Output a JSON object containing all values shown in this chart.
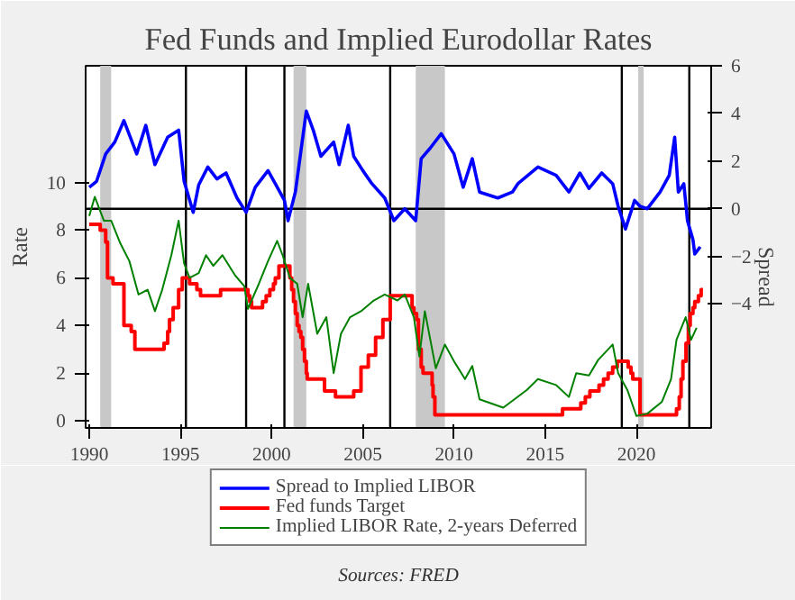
{
  "chart_data": {
    "type": "line",
    "title": "Fed Funds and Implied Eurodollar Rates",
    "ylabel": "Rate",
    "y2label": "Spread",
    "xlim": [
      1989.8,
      2024.1
    ],
    "xticks": [
      1990,
      1995,
      2000,
      2005,
      2010,
      2015,
      2020
    ],
    "ylim": [
      -0.3,
      14.9
    ],
    "yticks": [
      0,
      2,
      4,
      6,
      8,
      10
    ],
    "y2lim": [
      -9.2,
      6
    ],
    "y2ticks": [
      -4,
      -2,
      0,
      2,
      4,
      6
    ],
    "legend": "bottom",
    "grid": false,
    "annotations": [
      "Sources: FRED"
    ],
    "ref_lines": [
      {
        "axis": "y2",
        "value": 0,
        "color": "#000000"
      },
      {
        "axis": "x",
        "value": 1995.3,
        "color": "#000000"
      },
      {
        "axis": "x",
        "value": 1998.6,
        "color": "#000000"
      },
      {
        "axis": "x",
        "value": 2000.7,
        "color": "#000000"
      },
      {
        "axis": "x",
        "value": 2006.5,
        "color": "#000000"
      },
      {
        "axis": "x",
        "value": 2019.2,
        "color": "#000000"
      },
      {
        "axis": "x",
        "value": 2022.9,
        "color": "#000000"
      }
    ],
    "bands": [
      {
        "axis": "x",
        "from": 1990.6,
        "to": 1991.2,
        "color": "#c8c8c8"
      },
      {
        "axis": "x",
        "from": 2001.2,
        "to": 2001.9,
        "color": "#c8c8c8"
      },
      {
        "axis": "x",
        "from": 2007.9,
        "to": 2009.5,
        "color": "#c8c8c8"
      },
      {
        "axis": "x",
        "from": 2020.1,
        "to": 2020.4,
        "color": "#c8c8c8"
      }
    ],
    "series": [
      {
        "name": "Spread to Implied LIBOR",
        "type": "line",
        "axis": "y2",
        "color": "#0000ff",
        "x": [
          1990.0,
          1990.4,
          1990.9,
          1991.4,
          1991.9,
          1992.6,
          1993.1,
          1993.6,
          1994.3,
          1994.9,
          1995.2,
          1995.7,
          1996.0,
          1996.5,
          1997.0,
          1997.5,
          1998.1,
          1998.6,
          1999.1,
          1999.8,
          2000.2,
          2000.7,
          2000.9,
          2001.3,
          2001.9,
          2002.3,
          2002.7,
          2003.4,
          2003.7,
          2004.2,
          2004.5,
          2005.0,
          2005.5,
          2006.2,
          2006.7,
          2007.3,
          2007.9,
          2008.2,
          2008.7,
          2009.3,
          2010.0,
          2010.5,
          2011.0,
          2011.4,
          2012.4,
          2013.2,
          2013.5,
          2014.6,
          2015.6,
          2016.3,
          2016.9,
          2017.4,
          2018.1,
          2018.7,
          2019.0,
          2019.4,
          2019.9,
          2020.2,
          2020.6,
          2021.3,
          2021.8,
          2022.1,
          2022.3,
          2022.6,
          2022.8,
          2023.1,
          2023.2,
          2023.5
        ],
        "values": [
          0.9,
          1.15,
          2.3,
          2.8,
          3.7,
          2.3,
          3.5,
          1.85,
          3.0,
          3.3,
          1.15,
          -0.15,
          1.0,
          1.75,
          1.25,
          1.5,
          0.45,
          -0.15,
          0.9,
          1.6,
          1.05,
          0.35,
          -0.5,
          0.7,
          4.1,
          3.25,
          2.2,
          2.8,
          1.85,
          3.5,
          2.2,
          1.6,
          1.05,
          0.45,
          -0.5,
          0.0,
          -0.5,
          2.1,
          2.55,
          3.15,
          2.3,
          0.9,
          2.1,
          0.7,
          0.45,
          0.7,
          1.05,
          1.75,
          1.4,
          0.7,
          1.5,
          0.85,
          1.5,
          1.05,
          0.1,
          -0.85,
          0.35,
          0.1,
          0.0,
          0.7,
          1.4,
          3.0,
          0.7,
          1.05,
          -0.5,
          -1.3,
          -1.9,
          -1.6
        ]
      },
      {
        "name": "Fed funds Target",
        "type": "step",
        "color": "#ff0000",
        "x": [
          1990.0,
          1990.6,
          1990.9,
          1991.0,
          1991.3,
          1991.9,
          1992.3,
          1992.5,
          1994.1,
          1994.3,
          1994.4,
          1994.6,
          1994.9,
          1995.1,
          1995.5,
          1995.9,
          1996.1,
          1997.2,
          1998.7,
          1998.8,
          1998.9,
          1999.5,
          1999.7,
          1999.9,
          2000.1,
          2000.2,
          2000.4,
          2001.0,
          2001.1,
          2001.2,
          2001.3,
          2001.4,
          2001.5,
          2001.6,
          2001.7,
          2001.8,
          2001.9,
          2001.95,
          2002.9,
          2003.5,
          2004.5,
          2004.9,
          2005.3,
          2005.7,
          2006.1,
          2006.5,
          2007.7,
          2007.8,
          2007.95,
          2008.05,
          2008.2,
          2008.3,
          2008.8,
          2008.85,
          2008.95,
          2015.95,
          2016.95,
          2017.2,
          2017.45,
          2017.95,
          2018.2,
          2018.45,
          2018.7,
          2018.95,
          2019.55,
          2019.7,
          2019.8,
          2020.2,
          2022.2,
          2022.35,
          2022.45,
          2022.55,
          2022.72,
          2022.85,
          2022.95,
          2023.1,
          2023.2,
          2023.4,
          2023.55,
          2023.65
        ],
        "values": [
          8.25,
          8.0,
          7.5,
          6.0,
          5.75,
          4.0,
          3.75,
          3.0,
          3.25,
          3.75,
          4.25,
          4.75,
          5.5,
          6.0,
          5.75,
          5.5,
          5.25,
          5.5,
          5.25,
          5.0,
          4.75,
          5.0,
          5.25,
          5.5,
          5.75,
          6.0,
          6.5,
          6.0,
          5.5,
          5.0,
          4.5,
          4.0,
          3.75,
          3.5,
          3.0,
          2.5,
          2.0,
          1.75,
          1.25,
          1.0,
          1.25,
          2.25,
          2.75,
          3.5,
          4.25,
          5.25,
          4.75,
          4.5,
          4.25,
          3.0,
          2.25,
          2.0,
          1.5,
          1.0,
          0.25,
          0.5,
          0.75,
          1.0,
          1.25,
          1.5,
          1.75,
          2.0,
          2.25,
          2.5,
          2.25,
          2.0,
          1.75,
          0.25,
          0.5,
          1.0,
          1.75,
          2.5,
          3.25,
          4.0,
          4.5,
          4.75,
          5.0,
          5.25,
          5.5,
          5.5
        ]
      },
      {
        "name": "Implied LIBOR Rate, 2-years Deferred",
        "type": "line",
        "color": "#008000",
        "x": [
          1990.0,
          1990.3,
          1990.8,
          1991.2,
          1991.7,
          1992.2,
          1992.7,
          1993.2,
          1993.6,
          1994.0,
          1994.5,
          1994.9,
          1995.2,
          1995.5,
          1996.0,
          1996.4,
          1996.8,
          1997.3,
          1998.0,
          1998.5,
          1998.7,
          1999.3,
          1999.8,
          2000.3,
          2000.6,
          2001.0,
          2001.4,
          2001.7,
          2002.0,
          2002.5,
          2003.0,
          2003.4,
          2003.8,
          2004.3,
          2004.9,
          2005.6,
          2006.2,
          2006.9,
          2007.3,
          2007.8,
          2008.1,
          2008.4,
          2008.7,
          2009.0,
          2009.5,
          2010.0,
          2010.6,
          2011.0,
          2011.4,
          2012.7,
          2014.0,
          2014.6,
          2015.6,
          2016.3,
          2016.7,
          2017.4,
          2017.9,
          2018.7,
          2019.0,
          2019.5,
          2020.0,
          2020.6,
          2021.4,
          2021.9,
          2022.2,
          2022.7,
          2023.0,
          2023.3
        ],
        "values": [
          8.6,
          9.4,
          8.4,
          8.4,
          7.45,
          6.7,
          5.3,
          5.5,
          4.6,
          5.5,
          6.95,
          8.4,
          6.6,
          6.0,
          6.2,
          6.95,
          6.5,
          6.95,
          6.1,
          5.65,
          4.7,
          5.75,
          6.7,
          7.55,
          6.95,
          6.0,
          5.75,
          4.35,
          5.75,
          3.65,
          4.35,
          2.0,
          3.65,
          4.35,
          4.6,
          5.05,
          5.3,
          5.05,
          5.3,
          4.35,
          2.7,
          4.6,
          3.4,
          2.2,
          3.2,
          2.5,
          1.75,
          2.3,
          0.9,
          0.55,
          1.3,
          1.75,
          1.5,
          1.0,
          2.0,
          1.9,
          2.55,
          3.2,
          2.0,
          1.3,
          0.2,
          0.3,
          0.8,
          1.75,
          3.4,
          4.35,
          3.4,
          3.9
        ]
      }
    ]
  }
}
